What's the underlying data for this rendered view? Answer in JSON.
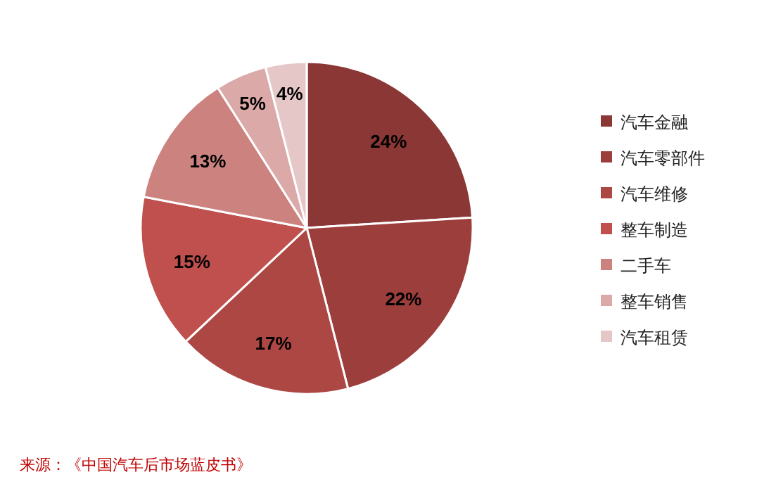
{
  "chart_data": {
    "type": "pie",
    "categories": [
      "汽车金融",
      "汽车零部件",
      "汽车维修",
      "整车制造",
      "二手车",
      "整车销售",
      "汽车租赁"
    ],
    "values": [
      24,
      22,
      17,
      15,
      13,
      5,
      4
    ],
    "colors": [
      "#8a3735",
      "#9c3e3c",
      "#ad4744",
      "#c0504d",
      "#cc8380",
      "#dba9a8",
      "#e6c7c7"
    ],
    "value_labels": [
      "24%",
      "22%",
      "17%",
      "15%",
      "13%",
      "5%",
      "4%"
    ],
    "legend": "right",
    "annotations": [
      "来源：《中国汽车后市场蓝皮书》"
    ]
  }
}
